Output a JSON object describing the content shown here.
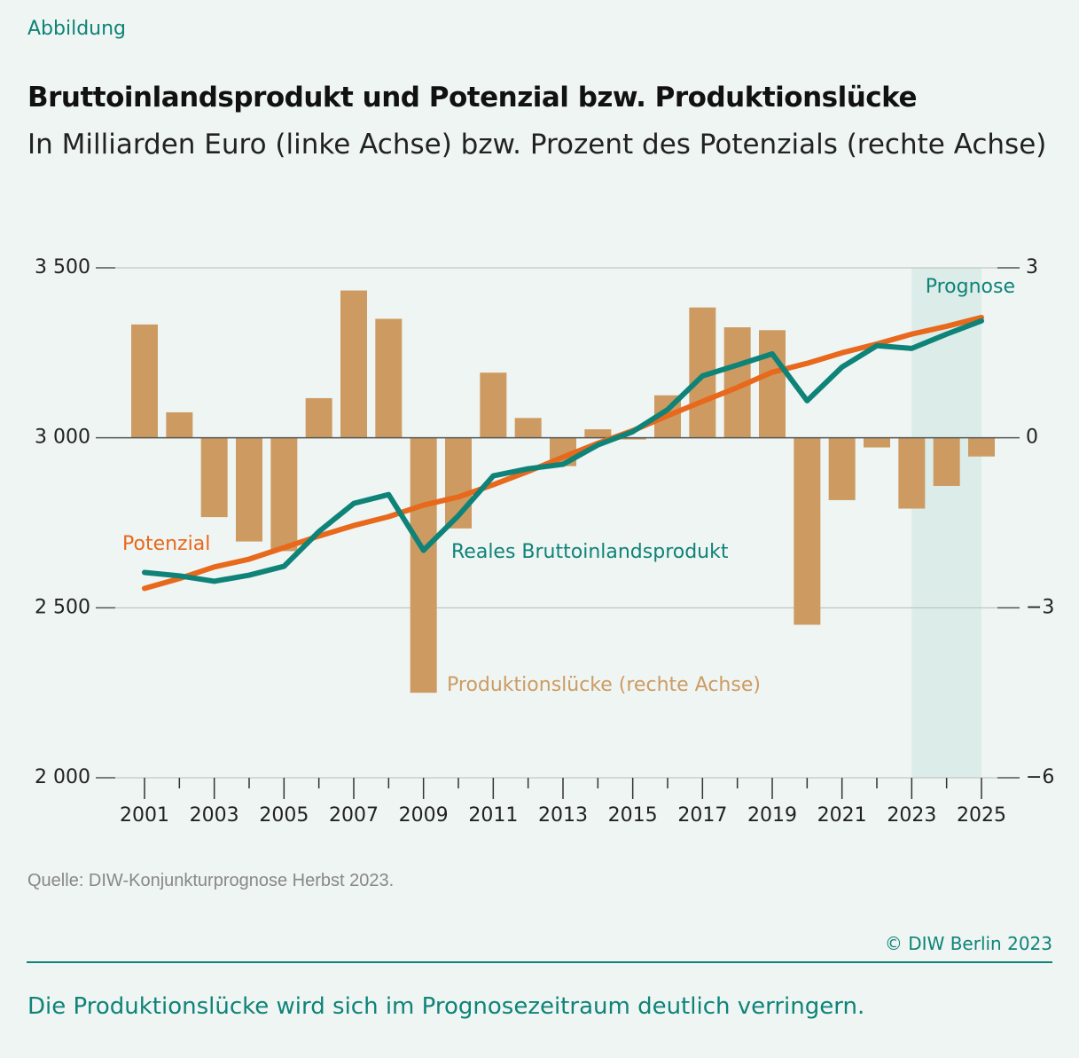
{
  "chart_data": {
    "type": "bar+line",
    "kicker": "Abbildung",
    "title": "Bruttoinlandsprodukt und Potenzial bzw. Produktionslücke",
    "subtitle": "In Milliarden Euro (linke Achse) bzw. Prozent des Potenzials (rechte Achse)",
    "x": [
      2001,
      2002,
      2003,
      2004,
      2005,
      2006,
      2007,
      2008,
      2009,
      2010,
      2011,
      2012,
      2013,
      2014,
      2015,
      2016,
      2017,
      2018,
      2019,
      2020,
      2021,
      2022,
      2023,
      2024,
      2025
    ],
    "xlim": [
      2001,
      2025
    ],
    "xticks": [
      2001,
      2003,
      2005,
      2007,
      2009,
      2011,
      2013,
      2015,
      2017,
      2019,
      2021,
      2023,
      2025
    ],
    "xminorticks": [
      2002,
      2004,
      2006,
      2008,
      2010,
      2012,
      2014,
      2016,
      2018,
      2020,
      2022,
      2024
    ],
    "ylim": [
      2000,
      3500
    ],
    "yticks": [
      {
        "value": 2000,
        "label": "2 000"
      },
      {
        "value": 2500,
        "label": "2 500"
      },
      {
        "value": 3000,
        "label": "3 000"
      },
      {
        "value": 3500,
        "label": "3 500"
      }
    ],
    "y2lim": [
      -6,
      3
    ],
    "y2ticks": [
      {
        "value": -6,
        "label": "−6"
      },
      {
        "value": -3,
        "label": "−3"
      },
      0,
      3
    ],
    "grid": true,
    "series": [
      {
        "name": "Produktionslücke (rechte Achse)",
        "type": "bar",
        "axis": "y2",
        "color": "#cd9b62",
        "values": [
          2.0,
          0.45,
          -1.4,
          -1.83,
          -2.0,
          0.7,
          2.6,
          2.1,
          -4.5,
          -1.6,
          1.15,
          0.35,
          -0.5,
          0.15,
          -0.03,
          0.75,
          2.3,
          1.95,
          1.9,
          -3.3,
          -1.1,
          -0.17,
          -1.25,
          -0.85,
          -0.33
        ]
      },
      {
        "name": "Reales Bruttoinlandsprodukt",
        "type": "line",
        "color": "#0f8378",
        "values": [
          2604,
          2594,
          2578,
          2596,
          2622,
          2724,
          2807,
          2833,
          2669,
          2771,
          2888,
          2909,
          2922,
          2979,
          3018,
          3083,
          3182,
          3214,
          3247,
          3109,
          3208,
          3271,
          3263,
          3305,
          3344
        ]
      },
      {
        "name": "Potenzial",
        "type": "line",
        "color": "#e8681c",
        "values": [
          2557,
          2586,
          2620,
          2643,
          2677,
          2711,
          2742,
          2768,
          2802,
          2826,
          2862,
          2901,
          2943,
          2984,
          3021,
          3065,
          3107,
          3148,
          3193,
          3219,
          3250,
          3276,
          3305,
          3328,
          3354
        ]
      }
    ],
    "forecast": {
      "label": "Prognose",
      "from": 2023,
      "to": 2025,
      "color": "#dcede9"
    },
    "source": "Quelle: DIW-Konjunkturprognose Herbst 2023.",
    "copyright": "© DIW Berlin 2023",
    "caption": "Die Produktionslücke wird sich im Prognosezeitraum deutlich verringern."
  }
}
